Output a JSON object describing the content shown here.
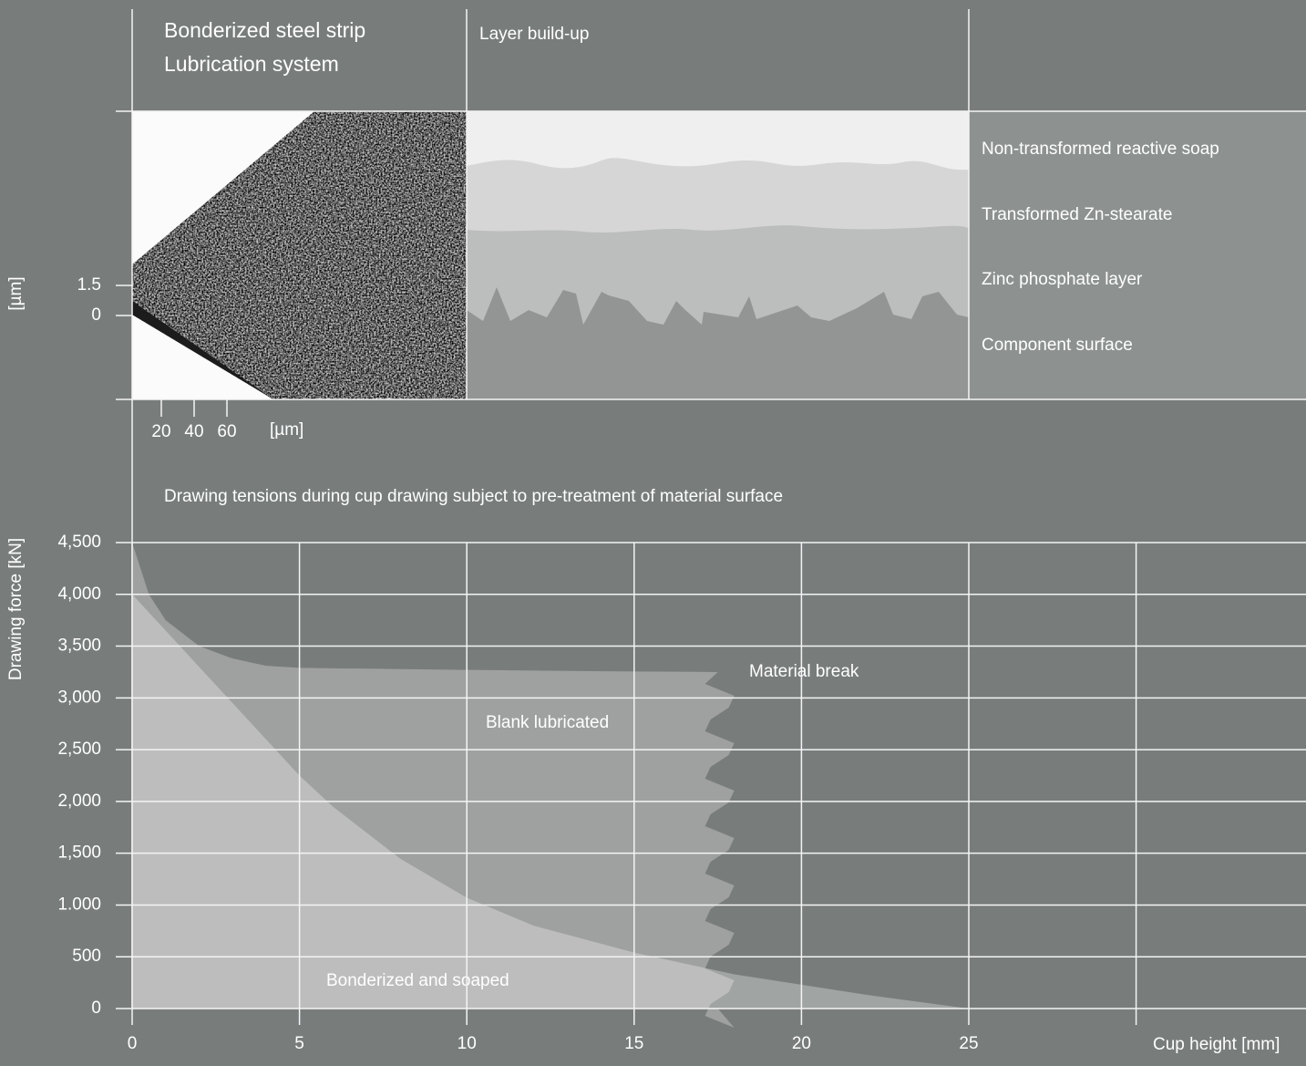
{
  "header": {
    "left_title": [
      "Bonderized steel strip",
      "Lubrication system"
    ],
    "middle_title": "Layer build-up"
  },
  "layers": [
    "Non-transformed reactive soap",
    "Transformed Zn-stearate",
    "Zinc phosphate layer",
    "Component surface"
  ],
  "micrograph": {
    "y_label": "[µm]",
    "yticks": [
      1.5,
      0
    ],
    "x_label": "[µm]",
    "xticks": [
      20,
      40,
      60
    ]
  },
  "chart_data": {
    "type": "area",
    "title": "Drawing tensions during cup drawing subject to pre-treatment of material surface",
    "x_label": "Cup height  [mm]",
    "y_label": "Drawing force [kN]",
    "annotations": [
      "Material break"
    ],
    "xlim": [
      0,
      35
    ],
    "ylim": [
      0,
      4500
    ],
    "xticks": [
      0,
      5,
      10,
      15,
      20,
      25,
      {
        "value": 30,
        "label": null
      }
    ],
    "yticks": [
      {
        "value": 4500,
        "label": "4,500"
      },
      {
        "value": 4000,
        "label": "4,000"
      },
      {
        "value": 3500,
        "label": "3,500"
      },
      {
        "value": 3000,
        "label": "3,000"
      },
      {
        "value": 2500,
        "label": "2,500"
      },
      {
        "value": 2000,
        "label": "2,000"
      },
      {
        "value": 1500,
        "label": "1,500"
      },
      {
        "value": 1000,
        "label": "1.000"
      },
      500,
      0
    ],
    "grid": true,
    "series": [
      {
        "name": "Blank lubricated",
        "color": "#9fa1a0",
        "x": [
          0,
          0.5,
          1,
          2,
          3,
          4,
          5,
          10,
          15,
          17.5
        ],
        "values": [
          4500,
          4000,
          3750,
          3500,
          3380,
          3310,
          3290,
          3270,
          3255,
          3250
        ]
      },
      {
        "name": "Bonderized and soaped",
        "color": "#ffffff",
        "x": [
          0,
          1,
          2,
          3,
          4,
          5,
          6,
          8,
          10,
          12,
          15,
          18,
          20,
          22,
          25
        ],
        "values": [
          4000,
          3650,
          3300,
          2950,
          2600,
          2250,
          1950,
          1450,
          1070,
          800,
          540,
          330,
          230,
          130,
          0
        ]
      }
    ]
  }
}
